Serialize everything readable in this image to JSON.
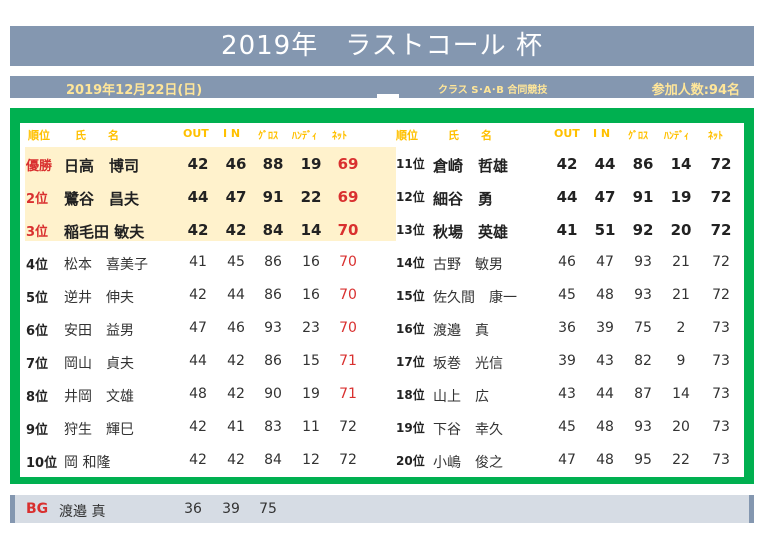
{
  "header": {
    "title": "2019年　ラストコール 杯",
    "date": "2019年12月22日(日)",
    "class_info": "クラス S･A･B 合同競技",
    "participants": "参加人数:94名"
  },
  "columns": {
    "rank": "順位",
    "name": "氏　　名",
    "out": "OUT",
    "in": "I N",
    "gross": "ｸﾞﾛｽ",
    "handicap": "ﾊﾝﾃﾞｨ",
    "net": "ﾈｯﾄ"
  },
  "left_rows": [
    {
      "rank": "優勝",
      "name": "日高　博司",
      "out": "42",
      "in": "46",
      "gross": "88",
      "handicap": "19",
      "net": "69"
    },
    {
      "rank": "2位",
      "name": "鷺谷　昌夫",
      "out": "44",
      "in": "47",
      "gross": "91",
      "handicap": "22",
      "net": "69"
    },
    {
      "rank": "3位",
      "name": "稲毛田 敏夫",
      "out": "42",
      "in": "42",
      "gross": "84",
      "handicap": "14",
      "net": "70"
    },
    {
      "rank": "4位",
      "name": "松本　喜美子",
      "out": "41",
      "in": "45",
      "gross": "86",
      "handicap": "16",
      "net": "70"
    },
    {
      "rank": "5位",
      "name": "逆井　伸夫",
      "out": "42",
      "in": "44",
      "gross": "86",
      "handicap": "16",
      "net": "70"
    },
    {
      "rank": "6位",
      "name": "安田　益男",
      "out": "47",
      "in": "46",
      "gross": "93",
      "handicap": "23",
      "net": "70"
    },
    {
      "rank": "7位",
      "name": "岡山　貞夫",
      "out": "44",
      "in": "42",
      "gross": "86",
      "handicap": "15",
      "net": "71"
    },
    {
      "rank": "8位",
      "name": "井岡　文雄",
      "out": "48",
      "in": "42",
      "gross": "90",
      "handicap": "19",
      "net": "71"
    },
    {
      "rank": "9位",
      "name": "狩生　輝巳",
      "out": "42",
      "in": "41",
      "gross": "83",
      "handicap": "11",
      "net": "72"
    },
    {
      "rank": "10位",
      "name": "岡 和隆",
      "out": "42",
      "in": "42",
      "gross": "84",
      "handicap": "12",
      "net": "72"
    }
  ],
  "right_rows": [
    {
      "rank": "11位",
      "name": "倉崎　哲雄",
      "out": "42",
      "in": "44",
      "gross": "86",
      "handicap": "14",
      "net": "72"
    },
    {
      "rank": "12位",
      "name": "細谷　勇",
      "out": "44",
      "in": "47",
      "gross": "91",
      "handicap": "19",
      "net": "72"
    },
    {
      "rank": "13位",
      "name": "秋場　英雄",
      "out": "41",
      "in": "51",
      "gross": "92",
      "handicap": "20",
      "net": "72"
    },
    {
      "rank": "14位",
      "name": "古野　敏男",
      "out": "46",
      "in": "47",
      "gross": "93",
      "handicap": "21",
      "net": "72"
    },
    {
      "rank": "15位",
      "name": "佐久間　康一",
      "out": "45",
      "in": "48",
      "gross": "93",
      "handicap": "21",
      "net": "72"
    },
    {
      "rank": "16位",
      "name": "渡邉　真",
      "out": "36",
      "in": "39",
      "gross": "75",
      "handicap": "2",
      "net": "73"
    },
    {
      "rank": "17位",
      "name": "坂巻　光信",
      "out": "39",
      "in": "43",
      "gross": "82",
      "handicap": "9",
      "net": "73"
    },
    {
      "rank": "18位",
      "name": "山上　広",
      "out": "43",
      "in": "44",
      "gross": "87",
      "handicap": "14",
      "net": "73"
    },
    {
      "rank": "19位",
      "name": "下谷　幸久",
      "out": "45",
      "in": "48",
      "gross": "93",
      "handicap": "20",
      "net": "73"
    },
    {
      "rank": "20位",
      "name": "小嶋　俊之",
      "out": "47",
      "in": "48",
      "gross": "95",
      "handicap": "22",
      "net": "73"
    }
  ],
  "best_gross": {
    "label": "BG",
    "name": "渡邉 真",
    "out": "36",
    "in": "39",
    "gross": "75"
  },
  "colors": {
    "title_bar": "#8497b0",
    "board_green": "#00b050",
    "header_yellow": "#ffc000",
    "highlight": "#fff2cc",
    "red": "#d9302f"
  }
}
